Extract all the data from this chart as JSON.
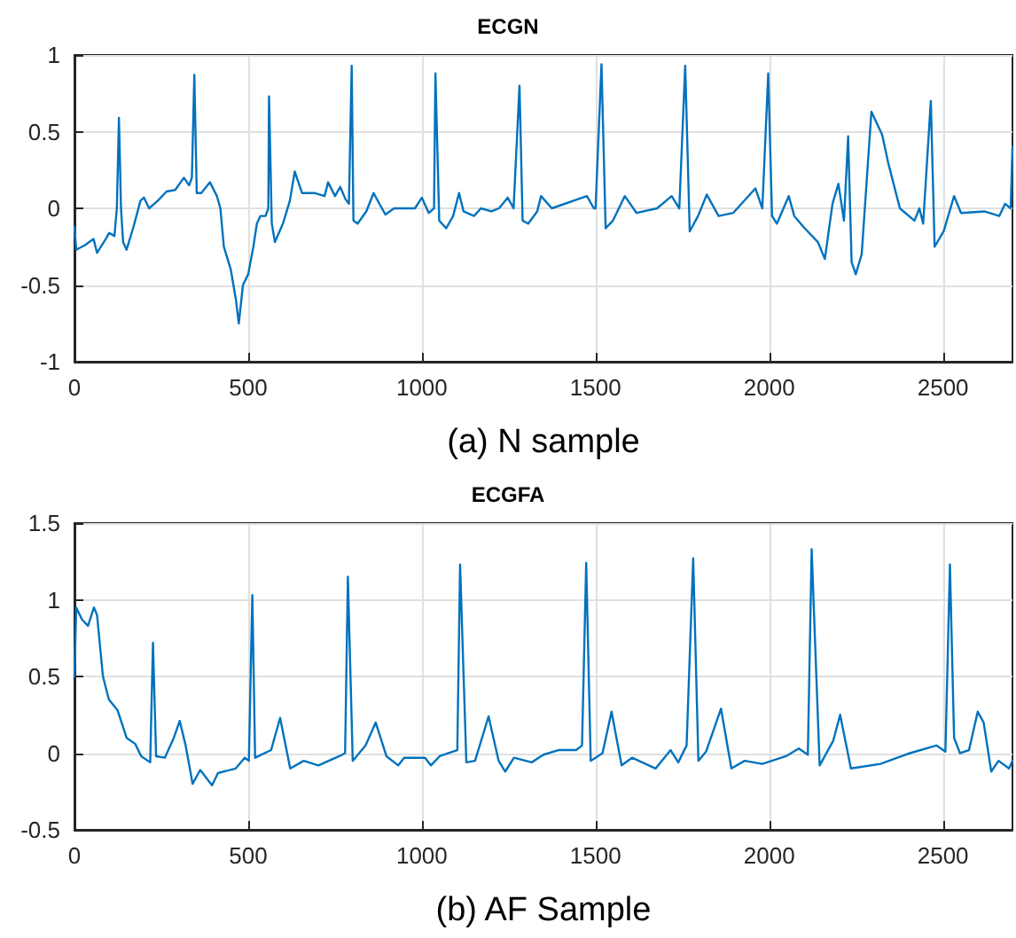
{
  "chart_data": [
    {
      "type": "line",
      "title": "ECGN",
      "xlabel": "(a) N sample",
      "xlim": [
        0,
        2700
      ],
      "xticks": [
        0,
        500,
        1000,
        1500,
        2000,
        2500
      ],
      "ylim": [
        -1,
        1
      ],
      "yticks": [
        -1,
        -0.5,
        0,
        0.5,
        1
      ],
      "grid": true,
      "marker": "none",
      "line_style": "solid",
      "series": [
        {
          "color": "#0072bd",
          "x": [
            0,
            5,
            30,
            55,
            65,
            90,
            100,
            115,
            122,
            128,
            134,
            140,
            150,
            170,
            190,
            200,
            215,
            240,
            265,
            290,
            315,
            330,
            338,
            345,
            352,
            365,
            390,
            410,
            420,
            430,
            450,
            465,
            473,
            485,
            500,
            515,
            525,
            535,
            550,
            558,
            560,
            568,
            577,
            600,
            620,
            634,
            655,
            690,
            720,
            730,
            750,
            765,
            780,
            790,
            798,
            803,
            815,
            840,
            861,
            880,
            895,
            920,
            980,
            1000,
            1020,
            1035,
            1039,
            1050,
            1070,
            1090,
            1107,
            1120,
            1150,
            1170,
            1200,
            1222,
            1247,
            1264,
            1281,
            1290,
            1306,
            1332,
            1343,
            1374,
            1475,
            1495,
            1500,
            1517,
            1529,
            1550,
            1584,
            1618,
            1677,
            1719,
            1741,
            1758,
            1771,
            1795,
            1820,
            1854,
            1896,
            1960,
            1980,
            1997,
            2008,
            2022,
            2056,
            2072,
            2098,
            2140,
            2160,
            2182,
            2199,
            2215,
            2227,
            2237,
            2249,
            2266,
            2294,
            2325,
            2342,
            2376,
            2418,
            2432,
            2443,
            2465,
            2476,
            2502,
            2532,
            2552,
            2619,
            2662,
            2679,
            2695,
            2700
          ],
          "values": [
            -0.12,
            -0.27,
            -0.24,
            -0.2,
            -0.29,
            -0.2,
            -0.16,
            -0.18,
            0.0,
            0.59,
            0.0,
            -0.22,
            -0.27,
            -0.12,
            0.05,
            0.07,
            0.0,
            0.05,
            0.11,
            0.12,
            0.2,
            0.15,
            0.2,
            0.87,
            0.1,
            0.1,
            0.17,
            0.08,
            0.0,
            -0.25,
            -0.4,
            -0.6,
            -0.75,
            -0.5,
            -0.43,
            -0.25,
            -0.1,
            -0.05,
            -0.05,
            0.0,
            0.73,
            -0.1,
            -0.22,
            -0.1,
            0.05,
            0.24,
            0.1,
            0.1,
            0.08,
            0.17,
            0.08,
            0.14,
            0.06,
            0.03,
            0.93,
            -0.08,
            -0.1,
            -0.02,
            0.1,
            0.02,
            -0.04,
            0.0,
            0.0,
            0.07,
            -0.03,
            0.0,
            0.88,
            -0.08,
            -0.13,
            -0.05,
            0.1,
            -0.02,
            -0.05,
            0.0,
            -0.02,
            0.0,
            0.07,
            0.0,
            0.8,
            -0.08,
            -0.1,
            -0.02,
            0.08,
            0.0,
            0.08,
            0.0,
            0.0,
            0.94,
            -0.13,
            -0.08,
            0.08,
            -0.03,
            0.0,
            0.08,
            0.0,
            0.93,
            -0.15,
            -0.05,
            0.09,
            -0.05,
            -0.03,
            0.13,
            0.0,
            0.88,
            -0.05,
            -0.1,
            0.08,
            -0.05,
            -0.12,
            -0.22,
            -0.33,
            0.03,
            0.16,
            -0.08,
            0.47,
            -0.35,
            -0.43,
            -0.3,
            0.63,
            0.48,
            0.3,
            0.0,
            -0.08,
            0.0,
            -0.1,
            0.7,
            -0.25,
            -0.15,
            0.08,
            -0.03,
            -0.02,
            -0.05,
            0.03,
            0.0,
            0.4
          ]
        }
      ]
    },
    {
      "type": "line",
      "title": "ECGFA",
      "xlabel": "(b) AF Sample",
      "xlim": [
        0,
        2700
      ],
      "xticks": [
        0,
        500,
        1000,
        1500,
        2000,
        2500
      ],
      "ylim": [
        -0.5,
        1.5
      ],
      "yticks": [
        -0.5,
        0,
        0.5,
        1,
        1.5
      ],
      "grid": true,
      "marker": "none",
      "line_style": "solid",
      "series": [
        {
          "color": "#0072bd",
          "x": [
            0,
            5,
            22,
            39,
            56,
            65,
            82,
            99,
            124,
            150,
            175,
            192,
            218,
            226,
            235,
            260,
            286,
            303,
            320,
            340,
            362,
            396,
            413,
            464,
            490,
            502,
            512,
            520,
            566,
            592,
            621,
            660,
            702,
            762,
            779,
            787,
            801,
            838,
            867,
            898,
            932,
            949,
            1009,
            1026,
            1051,
            1102,
            1110,
            1128,
            1153,
            1192,
            1221,
            1240,
            1265,
            1316,
            1350,
            1393,
            1444,
            1461,
            1473,
            1486,
            1520,
            1546,
            1575,
            1605,
            1673,
            1716,
            1738,
            1762,
            1781,
            1796,
            1818,
            1861,
            1891,
            1929,
            1980,
            2048,
            2085,
            2111,
            2122,
            2145,
            2184,
            2204,
            2235,
            2320,
            2405,
            2481,
            2507,
            2520,
            2532,
            2549,
            2575,
            2600,
            2617,
            2639,
            2660,
            2690,
            2700
          ],
          "values": [
            0.5,
            0.95,
            0.87,
            0.83,
            0.95,
            0.9,
            0.5,
            0.35,
            0.28,
            0.1,
            0.06,
            -0.02,
            -0.06,
            0.72,
            -0.02,
            -0.03,
            0.1,
            0.21,
            0.05,
            -0.2,
            -0.11,
            -0.21,
            -0.13,
            -0.1,
            -0.03,
            -0.05,
            1.03,
            -0.03,
            0.02,
            0.23,
            -0.1,
            -0.05,
            -0.08,
            -0.02,
            0.0,
            1.15,
            -0.05,
            0.05,
            0.2,
            -0.02,
            -0.08,
            -0.03,
            -0.03,
            -0.08,
            -0.02,
            0.02,
            1.23,
            -0.06,
            -0.05,
            0.24,
            -0.05,
            -0.12,
            -0.03,
            -0.06,
            -0.01,
            0.02,
            0.02,
            0.05,
            1.24,
            -0.05,
            0.0,
            0.27,
            -0.08,
            -0.03,
            -0.1,
            0.02,
            -0.06,
            0.05,
            1.27,
            -0.05,
            0.01,
            0.29,
            -0.1,
            -0.05,
            -0.07,
            -0.02,
            0.03,
            -0.01,
            1.33,
            -0.08,
            0.08,
            0.25,
            -0.1,
            -0.07,
            0.0,
            0.05,
            0.01,
            1.23,
            0.1,
            0.0,
            0.02,
            0.27,
            0.2,
            -0.12,
            -0.05,
            -0.1,
            -0.05
          ]
        }
      ]
    }
  ]
}
